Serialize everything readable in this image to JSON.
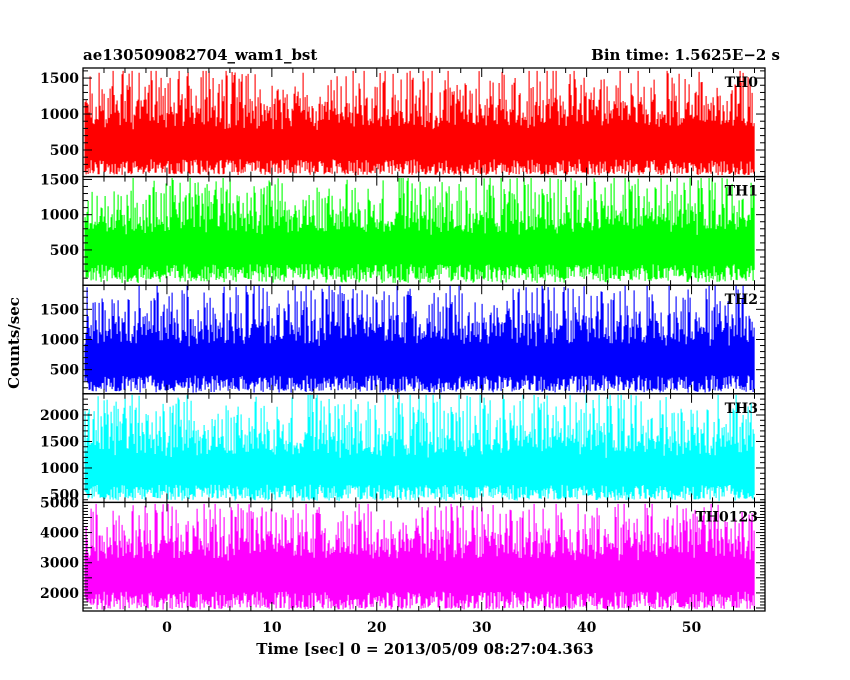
{
  "chart_data": {
    "type": "line",
    "title": "ae130509082704_wam1_bst",
    "subtitle": "Bin time: 1.5625E−2 s",
    "xlabel": "Time [sec] 0 = 2013/05/09 08:27:04.363",
    "ylabel": "Counts/sec",
    "xlim": [
      -8,
      57
    ],
    "x_ticks": [
      0,
      10,
      20,
      30,
      40,
      50
    ],
    "x_range_data": [
      -7.8,
      56
    ],
    "grid": false,
    "panels": [
      {
        "name": "TH0",
        "color": "#ff0000",
        "ylim": [
          130,
          1640
        ],
        "y_ticks": [
          500,
          1000,
          1500
        ],
        "baseline": 150,
        "mean": 760,
        "max": 1600,
        "min": 160
      },
      {
        "name": "TH1",
        "color": "#00ff00",
        "ylim": [
          0,
          1540
        ],
        "y_ticks": [
          500,
          1000,
          1500
        ],
        "baseline": 30,
        "mean": 700,
        "max": 1520,
        "min": 80
      },
      {
        "name": "TH2",
        "color": "#0000ff",
        "ylim": [
          100,
          1900
        ],
        "y_ticks": [
          500,
          1000,
          1500
        ],
        "baseline": 120,
        "mean": 880,
        "max": 1900,
        "min": 150
      },
      {
        "name": "TH3",
        "color": "#00ffff",
        "ylim": [
          350,
          2400
        ],
        "y_ticks": [
          500,
          1000,
          1500,
          2000
        ],
        "baseline": 380,
        "mean": 1170,
        "max": 2380,
        "min": 420
      },
      {
        "name": "TH0123",
        "color": "#ff00ff",
        "ylim": [
          1400,
          5000
        ],
        "y_ticks": [
          2000,
          3000,
          4000,
          5000
        ],
        "baseline": 1450,
        "mean": 3050,
        "max": 4950,
        "min": 1500
      }
    ]
  }
}
